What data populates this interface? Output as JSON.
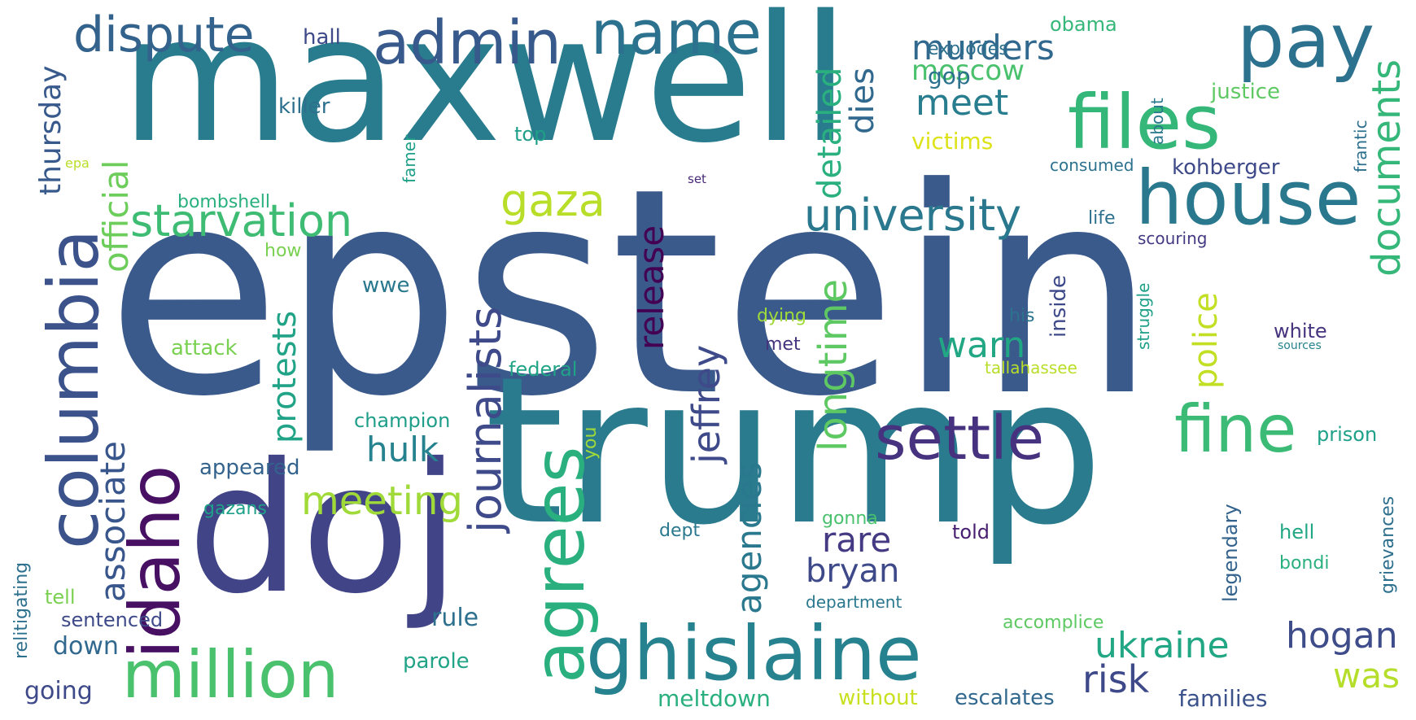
{
  "words": {
    "epstein": {
      "text": "epstein",
      "color": "#3b5a8c"
    },
    "trump": {
      "text": "trump",
      "color": "#2a7b8e"
    },
    "maxwell": {
      "text": "maxwell",
      "color": "#287c8e"
    },
    "doj": {
      "text": "doj",
      "color": "#414487"
    },
    "ghislaine": {
      "text": "ghislaine",
      "color": "#26828e"
    },
    "house": {
      "text": "house",
      "color": "#2a788e"
    },
    "pay": {
      "text": "pay",
      "color": "#2c718e"
    },
    "files": {
      "text": "files",
      "color": "#35b779"
    },
    "fine": {
      "text": "fine",
      "color": "#3bbb75"
    },
    "settle": {
      "text": "settle",
      "color": "#46327e"
    },
    "admin": {
      "text": "admin",
      "color": "#38598c"
    },
    "name": {
      "text": "name",
      "color": "#2c728e"
    },
    "dispute": {
      "text": "dispute",
      "color": "#33638d"
    },
    "million": {
      "text": "million",
      "color": "#4ac16d"
    },
    "columbia": {
      "text": "columbia",
      "color": "#3b528b"
    },
    "idaho": {
      "text": "idaho",
      "color": "#471063"
    },
    "agrees": {
      "text": "agrees",
      "color": "#2ab07f"
    },
    "journalists": {
      "text": "journalists",
      "color": "#3e4a89"
    },
    "starvation": {
      "text": "starvation",
      "color": "#3fbc73"
    },
    "gaza": {
      "text": "gaza",
      "color": "#b8de29"
    },
    "university": {
      "text": "university",
      "color": "#2a788e"
    },
    "documents": {
      "text": "documents",
      "color": "#35b779"
    },
    "meeting": {
      "text": "meeting",
      "color": "#a0da39"
    },
    "associate": {
      "text": "associate",
      "color": "#39568c"
    },
    "official": {
      "text": "official",
      "color": "#6ccd5a"
    },
    "thursday": {
      "text": "thursday",
      "color": "#38598c"
    },
    "murders": {
      "text": "murders",
      "color": "#31688e"
    },
    "moscow": {
      "text": "moscow",
      "color": "#4ac16d"
    },
    "meet": {
      "text": "meet",
      "color": "#287d8e"
    },
    "dies": {
      "text": "dies",
      "color": "#31688e"
    },
    "detailed": {
      "text": "detailed",
      "color": "#2ab07f"
    },
    "longtime": {
      "text": "longtime",
      "color": "#5ec962"
    },
    "release": {
      "text": "release",
      "color": "#440154"
    },
    "jeffrey": {
      "text": "jeffrey",
      "color": "#3e4a89"
    },
    "agencies": {
      "text": "agencies",
      "color": "#2a788e"
    },
    "protests": {
      "text": "protests",
      "color": "#20a386"
    },
    "hulk": {
      "text": "hulk",
      "color": "#26828e"
    },
    "warn": {
      "text": "warn",
      "color": "#22a785"
    },
    "police": {
      "text": "police",
      "color": "#c2df23"
    },
    "rare": {
      "text": "rare",
      "color": "#443983"
    },
    "bryan": {
      "text": "bryan",
      "color": "#3e4989"
    },
    "ukraine": {
      "text": "ukraine",
      "color": "#22a785"
    },
    "hogan": {
      "text": "hogan",
      "color": "#3e4c8a"
    },
    "was": {
      "text": "was",
      "color": "#b5de2b"
    },
    "risk": {
      "text": "risk",
      "color": "#3e4989"
    },
    "families": {
      "text": "families",
      "color": "#3b528b"
    },
    "escalates": {
      "text": "escalates",
      "color": "#31688e"
    },
    "without": {
      "text": "without",
      "color": "#c8e020"
    },
    "meltdown": {
      "text": "meltdown",
      "color": "#2ab07f"
    },
    "parole": {
      "text": "parole",
      "color": "#20a386"
    },
    "rule": {
      "text": "rule",
      "color": "#2d708e"
    },
    "down": {
      "text": "down",
      "color": "#31688e"
    },
    "going": {
      "text": "going",
      "color": "#3e4989"
    },
    "sentenced": {
      "text": "sentenced",
      "color": "#3e4a89"
    },
    "tell": {
      "text": "tell",
      "color": "#7ad151"
    },
    "relitigating": {
      "text": "relitigating",
      "color": "#2d708e"
    },
    "appeared": {
      "text": "appeared",
      "color": "#33638d"
    },
    "gazans": {
      "text": "gazans",
      "color": "#1fa088"
    },
    "champion": {
      "text": "champion",
      "color": "#1f9e89"
    },
    "federal": {
      "text": "federal",
      "color": "#20a386"
    },
    "attack": {
      "text": "attack",
      "color": "#7ad151"
    },
    "wwe": {
      "text": "wwe",
      "color": "#2a788e"
    },
    "how": {
      "text": "how",
      "color": "#7ad151"
    },
    "bombshell": {
      "text": "bombshell",
      "color": "#2ab07f"
    },
    "killer": {
      "text": "killer",
      "color": "#2d708e"
    },
    "hall": {
      "text": "hall",
      "color": "#3e4a89"
    },
    "top": {
      "text": "top",
      "color": "#1f9e89"
    },
    "famer": {
      "text": "famer",
      "color": "#1fa088"
    },
    "epa": {
      "text": "epa",
      "color": "#b8de29"
    },
    "obama": {
      "text": "obama",
      "color": "#35b779"
    },
    "explodes": {
      "text": "explodes",
      "color": "#2d708e"
    },
    "gop": {
      "text": "gop",
      "color": "#2c728e"
    },
    "justice": {
      "text": "justice",
      "color": "#5ec962"
    },
    "victims": {
      "text": "victims",
      "color": "#dde318"
    },
    "consumed": {
      "text": "consumed",
      "color": "#2c728e"
    },
    "kohberger": {
      "text": "kohberger",
      "color": "#3e4a89"
    },
    "about": {
      "text": "about",
      "color": "#2a788e"
    },
    "frantic": {
      "text": "frantic",
      "color": "#2d708e"
    },
    "set": {
      "text": "set",
      "color": "#482878"
    },
    "life": {
      "text": "life",
      "color": "#2d708e"
    },
    "scouring": {
      "text": "scouring",
      "color": "#443a83"
    },
    "struggle": {
      "text": "struggle",
      "color": "#1fa088"
    },
    "inside": {
      "text": "inside",
      "color": "#3e4989"
    },
    "his": {
      "text": "his",
      "color": "#2c728e"
    },
    "white": {
      "text": "white",
      "color": "#46337e"
    },
    "sources": {
      "text": "sources",
      "color": "#26828e"
    },
    "tallahassee": {
      "text": "tallahassee",
      "color": "#b8de29"
    },
    "dying": {
      "text": "dying",
      "color": "#a0da39"
    },
    "met": {
      "text": "met",
      "color": "#46337e"
    },
    "you": {
      "text": "you",
      "color": "#a0da39"
    },
    "prison": {
      "text": "prison",
      "color": "#1fa088"
    },
    "grievances": {
      "text": "grievances",
      "color": "#2d708e"
    },
    "legendary": {
      "text": "legendary",
      "color": "#33638d"
    },
    "hell": {
      "text": "hell",
      "color": "#22a785"
    },
    "bondi": {
      "text": "bondi",
      "color": "#2ab07f"
    },
    "told": {
      "text": "told",
      "color": "#481f70"
    },
    "gonna": {
      "text": "gonna",
      "color": "#4ac16d"
    },
    "dept": {
      "text": "dept",
      "color": "#2a788e"
    },
    "department": {
      "text": "department",
      "color": "#2a788e"
    },
    "accomplice": {
      "text": "accomplice",
      "color": "#5ec962"
    }
  }
}
